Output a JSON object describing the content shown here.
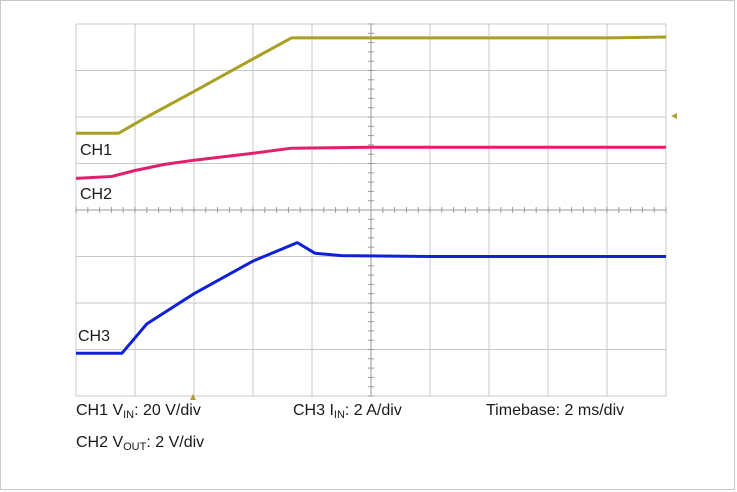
{
  "chart_data": {
    "type": "line",
    "title": "",
    "xlabel": "",
    "ylabel": "",
    "grid": true,
    "x_divisions": 10,
    "y_divisions": 8,
    "xlim": [
      0,
      10
    ],
    "ylim": [
      0,
      8
    ],
    "series": [
      {
        "name": "CH1",
        "color": "#a8a020",
        "x": [
          0,
          0.72,
          1.2,
          2.0,
          3.0,
          3.65,
          5.0,
          7.0,
          9.0,
          10.0
        ],
        "y": [
          5.65,
          5.65,
          6.0,
          6.55,
          7.25,
          7.7,
          7.7,
          7.7,
          7.7,
          7.72
        ]
      },
      {
        "name": "CH2",
        "color": "#e0206a",
        "x": [
          0,
          0.6,
          1.0,
          1.5,
          2.0,
          3.0,
          3.65,
          5.0,
          7.0,
          10.0
        ],
        "y": [
          4.68,
          4.72,
          4.85,
          4.98,
          5.07,
          5.22,
          5.33,
          5.35,
          5.35,
          5.35
        ]
      },
      {
        "name": "CH3",
        "color": "#1020d8",
        "x": [
          0,
          0.78,
          1.2,
          2.0,
          3.0,
          3.75,
          4.05,
          4.5,
          6.0,
          8.0,
          10.0
        ],
        "y": [
          0.92,
          0.92,
          1.55,
          2.2,
          2.9,
          3.3,
          3.07,
          3.02,
          3.0,
          3.0,
          3.0
        ]
      }
    ]
  },
  "labels": {
    "ch1": "CH1",
    "ch2": "CH2",
    "ch3": "CH3"
  },
  "caption": {
    "ch1_prefix": "CH1 V",
    "ch1_sub": "IN",
    "ch1_scale": ": 20 V/div",
    "ch3_prefix": "CH3 I",
    "ch3_sub": "IN",
    "ch3_scale": ": 2 A/div",
    "timebase": "Timebase: 2 ms/div",
    "ch2_prefix": "CH2 V",
    "ch2_sub": "OUT",
    "ch2_scale": ": 2 V/div"
  },
  "colors": {
    "grid_major": "#c8c8c8",
    "grid_minor": "#bdbdbd",
    "marker": "#b0a030"
  }
}
